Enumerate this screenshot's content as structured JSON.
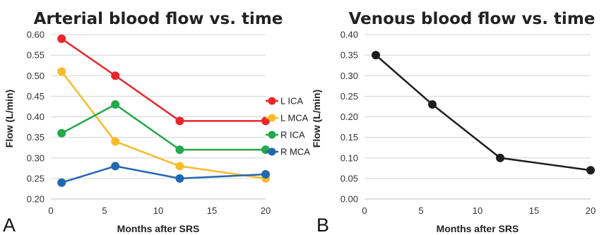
{
  "panels": [
    {
      "label": "A"
    },
    {
      "label": "B"
    }
  ],
  "chart_data": [
    {
      "type": "line",
      "title": "Arterial blood flow vs. time",
      "xlabel": "Months after SRS",
      "ylabel": "Flow (L/min)",
      "xlim": [
        0,
        20
      ],
      "ylim": [
        0.2,
        0.6
      ],
      "x_ticks": [
        0,
        5,
        10,
        15,
        20
      ],
      "x_tick_labels": [
        "0",
        "5",
        "10",
        "15",
        "20"
      ],
      "y_ticks": [
        0.2,
        0.25,
        0.3,
        0.35,
        0.4,
        0.45,
        0.5,
        0.55,
        0.6
      ],
      "y_tick_labels": [
        "0.20",
        "0.25",
        "0.30",
        "0.35",
        "0.40",
        "0.45",
        "0.50",
        "0.55",
        "0.60"
      ],
      "grid": "horizontal",
      "legend_position": "right",
      "x": [
        1,
        6,
        12,
        20
      ],
      "series": [
        {
          "name": "L ICA",
          "color": "#e8262b",
          "values": [
            0.59,
            0.5,
            0.39,
            0.39
          ]
        },
        {
          "name": "L MCA",
          "color": "#fbbb2a",
          "values": [
            0.51,
            0.34,
            0.28,
            0.25
          ]
        },
        {
          "name": "R ICA",
          "color": "#23a84a",
          "values": [
            0.36,
            0.43,
            0.32,
            0.32
          ]
        },
        {
          "name": "R MCA",
          "color": "#2166b0",
          "values": [
            0.24,
            0.28,
            0.25,
            0.26
          ]
        }
      ]
    },
    {
      "type": "line",
      "title": "Venous blood flow vs. time",
      "xlabel": "Months after SRS",
      "ylabel": "Flow (L/min)",
      "xlim": [
        0,
        20
      ],
      "ylim": [
        0.0,
        0.4
      ],
      "x_ticks": [
        0,
        5,
        10,
        15,
        20
      ],
      "x_tick_labels": [
        "0",
        "5",
        "10",
        "15",
        "20"
      ],
      "y_ticks": [
        0.0,
        0.05,
        0.1,
        0.15,
        0.2,
        0.25,
        0.3,
        0.35,
        0.4
      ],
      "y_tick_labels": [
        "0.00",
        "0.05",
        "0.10",
        "0.15",
        "0.20",
        "0.25",
        "0.30",
        "0.35",
        "0.40"
      ],
      "grid": "horizontal",
      "x": [
        1,
        6,
        12,
        20
      ],
      "series": [
        {
          "color": "#1e1e1e",
          "values": [
            0.35,
            0.23,
            0.1,
            0.07
          ]
        }
      ]
    }
  ]
}
